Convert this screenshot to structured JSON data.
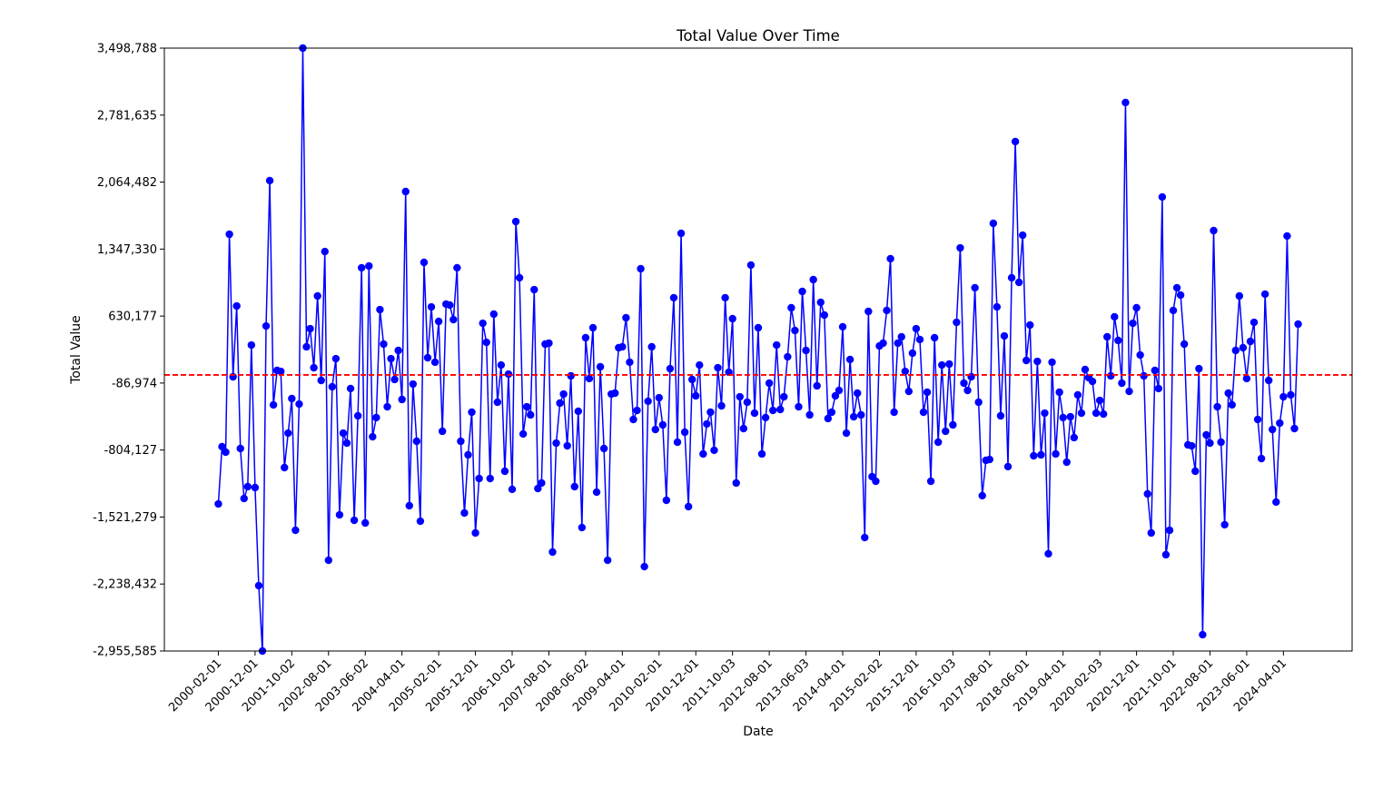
{
  "chart_data": {
    "type": "line",
    "title": "Total Value Over Time",
    "x_label": "Date",
    "y_label": "Total Value",
    "color": "blue",
    "hline": 0,
    "hline_color": "red",
    "grid": false,
    "ylim": [
      -2955585,
      3498788
    ],
    "yticks": [
      {
        "value": -2955585,
        "label": "-2,955,585"
      },
      {
        "value": -2238432,
        "label": "-2,238,432"
      },
      {
        "value": -1521279,
        "label": "-1,521,279"
      },
      {
        "value": -804127,
        "label": "-804,127"
      },
      {
        "value": -86974,
        "label": "-86,974"
      },
      {
        "value": 630177,
        "label": "630,177"
      },
      {
        "value": 1347330,
        "label": "1,347,330"
      },
      {
        "value": 2064482,
        "label": "2,064,482"
      },
      {
        "value": 2781635,
        "label": "2,781,635"
      },
      {
        "value": 3498788,
        "label": "3,498,788"
      }
    ],
    "categories": [
      "2000-02-01",
      null,
      null,
      null,
      null,
      null,
      null,
      null,
      null,
      null,
      "2000-12-01",
      null,
      null,
      null,
      null,
      null,
      null,
      null,
      null,
      null,
      "2001-10-02",
      null,
      null,
      null,
      null,
      null,
      null,
      null,
      null,
      null,
      "2002-08-01",
      null,
      null,
      null,
      null,
      null,
      null,
      null,
      null,
      null,
      "2003-06-02",
      null,
      null,
      null,
      null,
      null,
      null,
      null,
      null,
      null,
      "2004-04-01",
      null,
      null,
      null,
      null,
      null,
      null,
      null,
      null,
      null,
      "2005-02-01",
      null,
      null,
      null,
      null,
      null,
      null,
      null,
      null,
      null,
      "2005-12-01",
      null,
      null,
      null,
      null,
      null,
      null,
      null,
      null,
      null,
      "2006-10-02",
      null,
      null,
      null,
      null,
      null,
      null,
      null,
      null,
      null,
      "2007-08-01",
      null,
      null,
      null,
      null,
      null,
      null,
      null,
      null,
      null,
      "2008-06-02",
      null,
      null,
      null,
      null,
      null,
      null,
      null,
      null,
      null,
      "2009-04-01",
      null,
      null,
      null,
      null,
      null,
      null,
      null,
      null,
      null,
      "2010-02-01",
      null,
      null,
      null,
      null,
      null,
      null,
      null,
      null,
      null,
      "2010-12-01",
      null,
      null,
      null,
      null,
      null,
      null,
      null,
      null,
      null,
      "2011-10-03",
      null,
      null,
      null,
      null,
      null,
      null,
      null,
      null,
      null,
      "2012-08-01",
      null,
      null,
      null,
      null,
      null,
      null,
      null,
      null,
      null,
      "2013-06-03",
      null,
      null,
      null,
      null,
      null,
      null,
      null,
      null,
      null,
      "2014-04-01",
      null,
      null,
      null,
      null,
      null,
      null,
      null,
      null,
      null,
      "2015-02-02",
      null,
      null,
      null,
      null,
      null,
      null,
      null,
      null,
      null,
      "2015-12-01",
      null,
      null,
      null,
      null,
      null,
      null,
      null,
      null,
      null,
      "2016-10-03",
      null,
      null,
      null,
      null,
      null,
      null,
      null,
      null,
      null,
      "2017-08-01",
      null,
      null,
      null,
      null,
      null,
      null,
      null,
      null,
      null,
      "2018-06-01",
      null,
      null,
      null,
      null,
      null,
      null,
      null,
      null,
      null,
      "2019-04-01",
      null,
      null,
      null,
      null,
      null,
      null,
      null,
      null,
      null,
      "2020-02-03",
      null,
      null,
      null,
      null,
      null,
      null,
      null,
      null,
      null,
      "2020-12-01",
      null,
      null,
      null,
      null,
      null,
      null,
      null,
      null,
      null,
      "2021-10-01",
      null,
      null,
      null,
      null,
      null,
      null,
      null,
      null,
      null,
      "2022-08-01",
      null,
      null,
      null,
      null,
      null,
      null,
      null,
      null,
      null,
      "2023-06-01",
      null,
      null,
      null,
      null,
      null,
      null,
      null,
      null,
      null,
      "2024-04-01",
      null,
      null,
      null,
      null
    ],
    "values": [
      -1381000,
      -768000,
      -827000,
      1506000,
      -20000,
      738000,
      -788000,
      -1323000,
      -1196000,
      320000,
      -1206000,
      -2256000,
      -2955585,
      524000,
      2080000,
      -321000,
      48000,
      38000,
      -992000,
      -623000,
      -253000,
      -1663000,
      -312000,
      3498788,
      301000,
      495000,
      77000,
      845000,
      -59000,
      1321000,
      -1984000,
      -127000,
      174000,
      -1498000,
      -623000,
      -730000,
      -146000,
      -1556000,
      -438000,
      1147000,
      -1585000,
      1166000,
      -662000,
      -457000,
      699000,
      330000,
      -341000,
      174000,
      -49000,
      262000,
      -263000,
      1963000,
      -1400000,
      -98000,
      -710000,
      -1566000,
      1205000,
      184000,
      728000,
      136000,
      573000,
      -603000,
      758000,
      748000,
      592000,
      1147000,
      -710000,
      -1478000,
      -856000,
      -399000,
      -1692000,
      -1109000,
      553000,
      349000,
      -1109000,
      651000,
      -292000,
      106000,
      -1031000,
      9000,
      -1225000,
      1642000,
      1040000,
      -632000,
      -341000,
      -428000,
      913000,
      -1216000,
      -1157000,
      330000,
      340000,
      -1896000,
      -730000,
      -302000,
      -205000,
      -759000,
      -10000,
      -1196000,
      -389000,
      -1634000,
      398000,
      -39000,
      505000,
      -1255000,
      87000,
      -788000,
      -1984000,
      -205000,
      -195000,
      291000,
      301000,
      612000,
      136000,
      -477000,
      -380000,
      1137000,
      -2052000,
      -282000,
      301000,
      -584000,
      -244000,
      -535000,
      -1342000,
      67000,
      826000,
      -720000,
      1516000,
      -613000,
      -1410000,
      -49000,
      -224000,
      106000,
      -846000,
      -525000,
      -399000,
      -807000,
      77000,
      -331000,
      826000,
      29000,
      602000,
      -1157000,
      -234000,
      -574000,
      -292000,
      1176000,
      -409000,
      505000,
      -846000,
      -457000,
      -88000,
      -380000,
      320000,
      -370000,
      -234000,
      194000,
      719000,
      476000,
      -341000,
      894000,
      262000,
      -428000,
      1020000,
      -117000,
      777000,
      641000,
      -467000,
      -399000,
      -224000,
      -166000,
      515000,
      -623000,
      165000,
      -448000,
      -195000,
      -428000,
      -1741000,
      680000,
      -1089000,
      -1138000,
      310000,
      340000,
      690000,
      1244000,
      -399000,
      340000,
      408000,
      38000,
      -176000,
      233000,
      495000,
      379000,
      -399000,
      -185000,
      -1138000,
      398000,
      -720000,
      106000,
      -603000,
      116000,
      -535000,
      563000,
      1360000,
      -88000,
      -166000,
      -20000,
      933000,
      -292000,
      -1293000,
      -914000,
      -905000,
      1623000,
      728000,
      -438000,
      417000,
      -982000,
      1040000,
      2498000,
      991000,
      1496000,
      155000,
      534000,
      -866000,
      145000,
      -856000,
      -409000,
      -1915000,
      136000,
      -846000,
      -185000,
      -457000,
      -934000,
      -448000,
      -671000,
      -214000,
      -409000,
      58000,
      -30000,
      -69000,
      -409000,
      -273000,
      -419000,
      408000,
      -10000,
      622000,
      369000,
      -88000,
      2916000,
      -176000,
      553000,
      719000,
      213000,
      -10000,
      -1274000,
      -1692000,
      48000,
      -146000,
      1905000,
      -1925000,
      -1663000,
      690000,
      933000,
      855000,
      330000,
      -749000,
      -759000,
      -1031000,
      67000,
      -2781000,
      -642000,
      -730000,
      1545000,
      -341000,
      -720000,
      -1604000,
      -195000,
      -321000,
      262000,
      845000,
      291000,
      -39000,
      359000,
      563000,
      -477000,
      -895000,
      865000,
      -59000,
      -584000,
      -1361000,
      -516000,
      -234000,
      1487000,
      -214000,
      -574000,
      544000
    ]
  }
}
